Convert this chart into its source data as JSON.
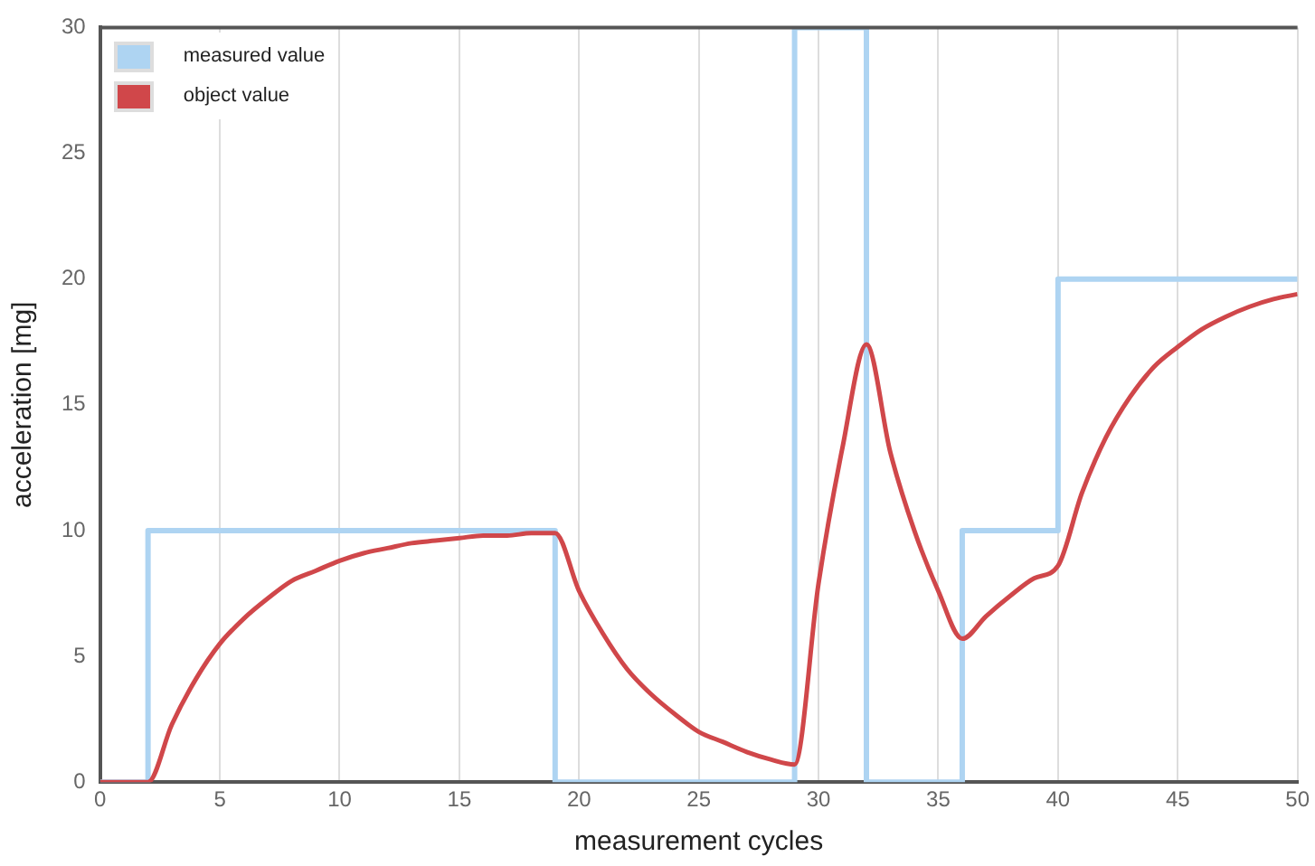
{
  "chart_data": {
    "type": "line",
    "xlabel": "measurement cycles",
    "ylabel": "acceleration [mg]",
    "xlim": [
      0,
      50
    ],
    "ylim": [
      0,
      30
    ],
    "xticks": [
      0,
      5,
      10,
      15,
      20,
      25,
      30,
      35,
      40,
      45,
      50
    ],
    "yticks": [
      0,
      5,
      10,
      15,
      20,
      25,
      30
    ],
    "grid": "x",
    "legend": "top left",
    "series": [
      {
        "name": "measured value",
        "type": "step",
        "color": "#aed4f2",
        "x": [
          0,
          2,
          19,
          29,
          32,
          36,
          40,
          50
        ],
        "values": [
          0,
          10,
          0,
          30,
          0,
          10,
          20,
          20
        ]
      },
      {
        "name": "object value",
        "color": "#d0474a",
        "x": [
          0,
          1,
          2,
          3,
          4,
          5,
          6,
          7,
          8,
          9,
          10,
          11,
          12,
          13,
          14,
          15,
          16,
          17,
          18,
          19,
          20,
          21,
          22,
          23,
          24,
          25,
          26,
          27,
          28,
          29,
          30,
          31,
          32,
          33,
          34,
          35,
          36,
          37,
          38,
          39,
          40,
          41,
          42,
          43,
          44,
          45,
          46,
          47,
          48,
          49,
          50
        ],
        "values": [
          0,
          0,
          0,
          2.3,
          4.1,
          5.5,
          6.5,
          7.3,
          8,
          8.4,
          8.8,
          9.1,
          9.3,
          9.5,
          9.6,
          9.7,
          9.8,
          9.8,
          9.9,
          9.9,
          7.6,
          5.9,
          4.5,
          3.5,
          2.7,
          2,
          1.6,
          1.2,
          0.9,
          0.7,
          7.9,
          13.3,
          17.4,
          13.1,
          10,
          7.6,
          5.7,
          6.6,
          7.4,
          8.1,
          8.6,
          11.5,
          13.7,
          15.3,
          16.5,
          17.3,
          18,
          18.5,
          18.9,
          19.2,
          19.4
        ]
      }
    ]
  }
}
